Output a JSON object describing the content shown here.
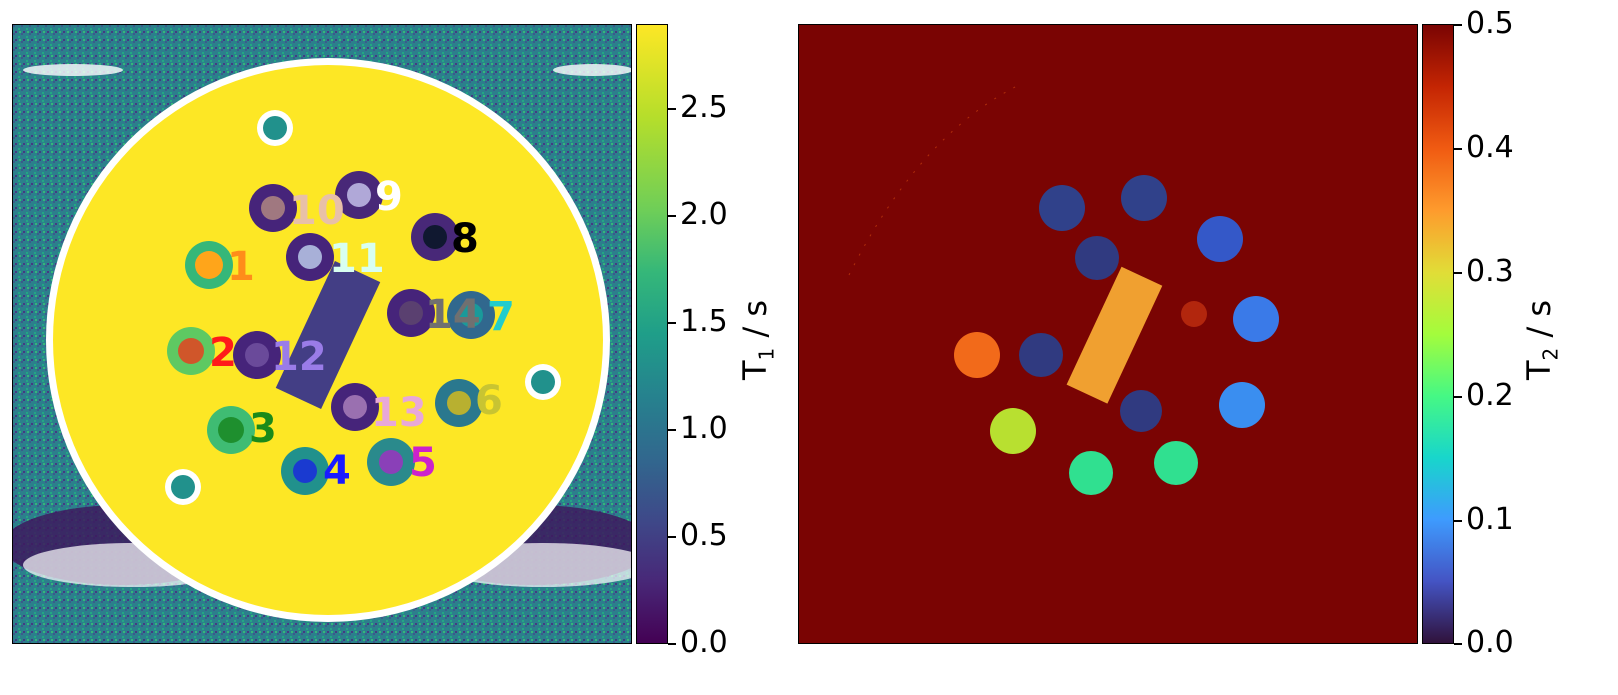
{
  "left_panel": {
    "colorbar_label": "T",
    "colorbar_label_sub": "1",
    "colorbar_unit": " / s",
    "colorbar_ticks": [
      "0.0",
      "0.5",
      "1.0",
      "1.5",
      "2.0",
      "2.5"
    ],
    "colorbar_min": 0.0,
    "colorbar_max": 2.9,
    "colormap": "viridis",
    "vial_labels": [
      {
        "text": "1",
        "color": "#ff8c1a"
      },
      {
        "text": "2",
        "color": "#ff1a1a"
      },
      {
        "text": "3",
        "color": "#1a8a1a"
      },
      {
        "text": "4",
        "color": "#1a1aff"
      },
      {
        "text": "5",
        "color": "#cc22cc"
      },
      {
        "text": "6",
        "color": "#c8c432"
      },
      {
        "text": "7",
        "color": "#22cccc"
      },
      {
        "text": "8",
        "color": "#000000"
      },
      {
        "text": "9",
        "color": "#ffffff"
      },
      {
        "text": "10",
        "color": "#e8c0a8"
      },
      {
        "text": "11",
        "color": "#d8fff0"
      },
      {
        "text": "12",
        "color": "#9a7ce8"
      },
      {
        "text": "13",
        "color": "#e8a8d8"
      },
      {
        "text": "14",
        "color": "#707070"
      }
    ]
  },
  "right_panel": {
    "colorbar_label": "T",
    "colorbar_label_sub": "2",
    "colorbar_unit": " / s",
    "colorbar_ticks": [
      "0.0",
      "0.1",
      "0.2",
      "0.3",
      "0.4",
      "0.5"
    ],
    "colorbar_min": 0.0,
    "colorbar_max": 0.5,
    "colormap": "turbo"
  }
}
